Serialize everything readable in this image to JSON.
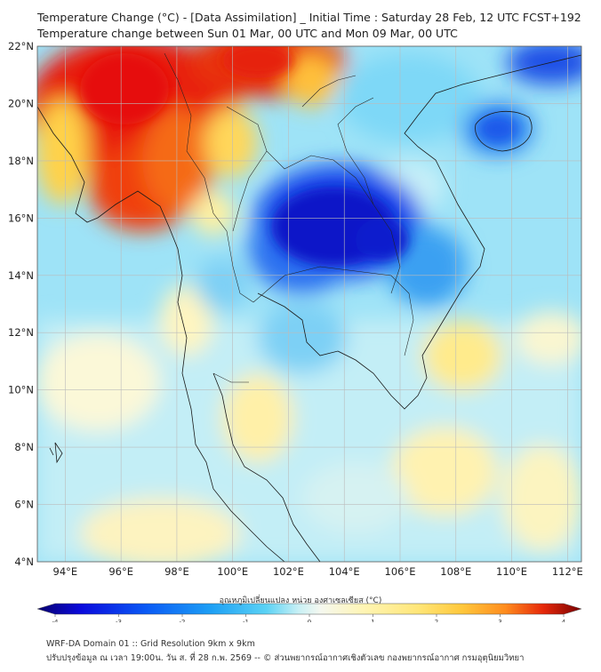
{
  "title": {
    "line1": "Temperature Change (°C) - [Data Assimilation] _ Initial Time : Saturday 28 Feb, 12 UTC FCST+192",
    "line2": "Temperature change between Sun 01 Mar, 00 UTC and Mon 09 Mar, 00 UTC"
  },
  "map": {
    "lat_range": [
      4,
      22
    ],
    "lon_range": [
      93,
      112.5
    ],
    "lat_ticks": [
      "4°N",
      "6°N",
      "8°N",
      "10°N",
      "12°N",
      "14°N",
      "16°N",
      "18°N",
      "20°N",
      "22°N"
    ],
    "lon_ticks": [
      "94°E",
      "96°E",
      "98°E",
      "100°E",
      "102°E",
      "104°E",
      "106°E",
      "108°E",
      "110°E",
      "112°E"
    ],
    "field": "temperature change",
    "unit": "°C"
  },
  "colorbar": {
    "label": "อุณหภูมิเปลี่ยนแปลง หน่วย องศาเซลเซียส (°C)",
    "min": -4,
    "max": 4,
    "tick_labels": [
      "-4",
      "-3",
      "-2",
      "-1",
      "0",
      "1",
      "2",
      "3",
      "4"
    ],
    "colors": [
      "#08006e",
      "#0a0adc",
      "#0a5af5",
      "#1ea0f5",
      "#5ad2f5",
      "#a5ebf5",
      "#e6f5f0",
      "#fafaf0",
      "#fff5b4",
      "#ffe678",
      "#ffc83c",
      "#ff8c1e",
      "#f03c0a",
      "#c80a0a",
      "#780000"
    ]
  },
  "footer": {
    "line1": "WRF-DA Domain 01 :: Grid Resolution 9km x 9km",
    "line2": "ปรับปรุงข้อมูล ณ เวลา 19:00น. วัน ส. ที่ 28 ก.พ. 2569 -- © ส่วนพยากรณ์อากาศเชิงตัวเลข กองพยากรณ์อากาศ กรมอุตุนิยมวิทยา"
  }
}
